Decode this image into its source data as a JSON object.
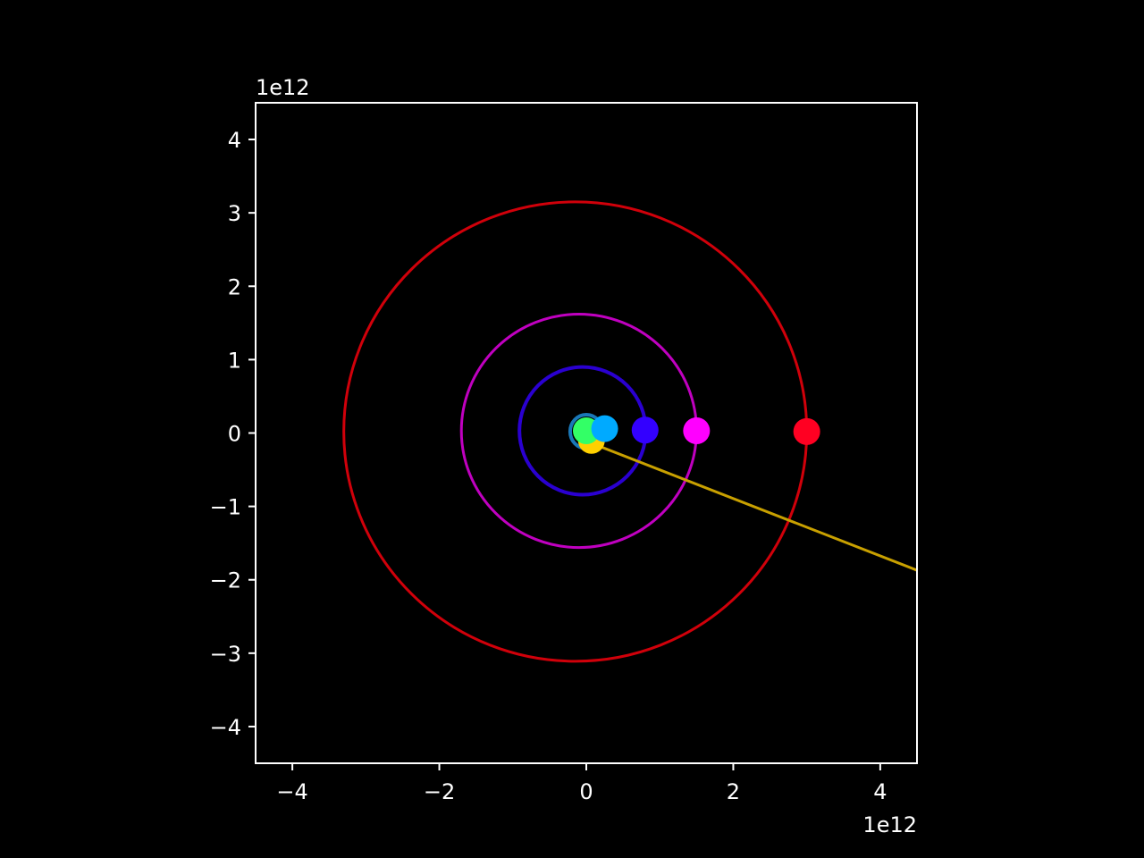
{
  "chart_data": {
    "type": "scatter",
    "title": "",
    "xlabel": "",
    "ylabel": "",
    "x_offset_label": "1e12",
    "y_offset_label": "1e12",
    "xlim": [
      -4.5,
      4.5
    ],
    "ylim": [
      -4.5,
      4.5
    ],
    "x_ticks": [
      -4,
      -2,
      0,
      2,
      4
    ],
    "y_ticks": [
      -4,
      -3,
      -2,
      -1,
      0,
      1,
      2,
      3,
      4
    ],
    "x_tick_labels": [
      "−4",
      "−2",
      "0",
      "2",
      "4"
    ],
    "y_tick_labels": [
      "−4",
      "−3",
      "−2",
      "−1",
      "0",
      "1",
      "2",
      "3",
      "4"
    ],
    "grid": false,
    "background": "#000000",
    "frame_color": "#ffffff",
    "orbits": [
      {
        "color": "#d0000a",
        "cx": -0.15,
        "cy": 0.02,
        "rx": 3.15,
        "ry": 3.13
      },
      {
        "color": "#c000c0",
        "cx": -0.1,
        "cy": 0.03,
        "rx": 1.6,
        "ry": 1.59
      },
      {
        "color": "#2a00d0",
        "cx": -0.05,
        "cy": 0.03,
        "rx": 0.86,
        "ry": 0.87
      },
      {
        "color": "#1a78b8",
        "cx": 0.0,
        "cy": 0.02,
        "rx": 0.22,
        "ry": 0.23
      },
      {
        "color": "#2ecc40",
        "cx": 0.0,
        "cy": 0.02,
        "rx": 0.12,
        "ry": 0.12
      }
    ],
    "trajectory": {
      "color": "#c8a000",
      "points": [
        [
          0.1,
          -0.15
        ],
        [
          4.5,
          -1.87
        ]
      ]
    },
    "bodies": [
      {
        "color": "#ff0022",
        "x": 3.0,
        "y": 0.02
      },
      {
        "color": "#ff00ff",
        "x": 1.5,
        "y": 0.03
      },
      {
        "color": "#3300ff",
        "x": 0.8,
        "y": 0.04
      },
      {
        "color": "#00aaff",
        "x": 0.25,
        "y": 0.06
      },
      {
        "color": "#33ff66",
        "x": 0.0,
        "y": 0.03
      },
      {
        "color": "#ffd000",
        "x": 0.07,
        "y": -0.1
      }
    ]
  }
}
